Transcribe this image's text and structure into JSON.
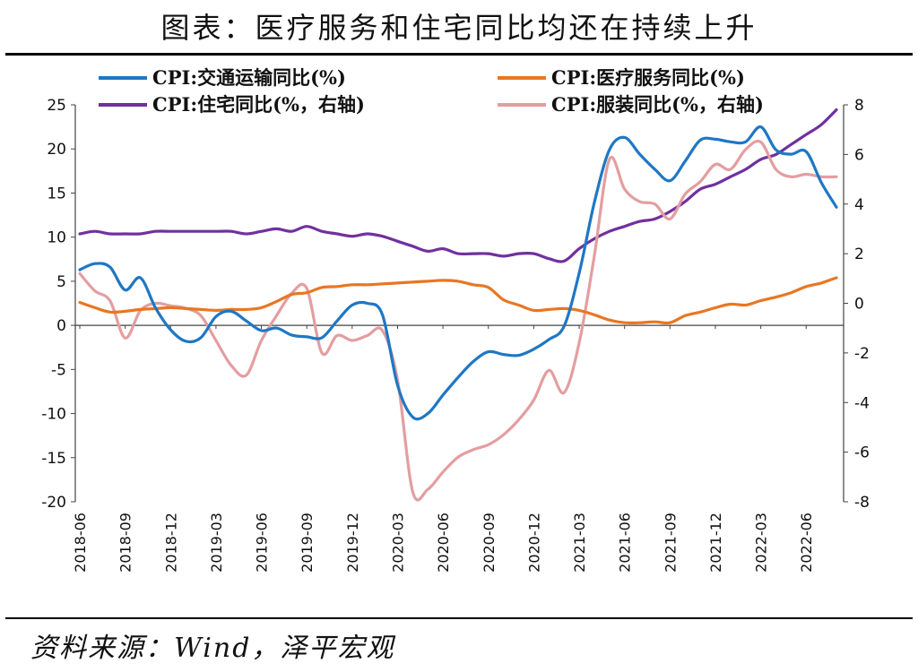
{
  "title": "图表：医疗服务和住宅同比均还在持续上升",
  "source": "资料来源：Wind，泽平宏观",
  "chart_data": {
    "type": "line",
    "left_axis": {
      "ylim": [
        -20,
        25
      ],
      "ticks": [
        25,
        20,
        15,
        10,
        5,
        0,
        -5,
        -10,
        -15,
        -20
      ]
    },
    "right_axis": {
      "ylim": [
        -8,
        8
      ],
      "ticks": [
        8,
        6,
        4,
        2,
        0,
        -2,
        -4,
        -6,
        -8
      ]
    },
    "x_tick_labels": [
      "2018-06",
      "2018-09",
      "2018-12",
      "2019-03",
      "2019-06",
      "2019-09",
      "2019-12",
      "2020-03",
      "2020-06",
      "2020-09",
      "2020-12",
      "2021-03",
      "2021-06",
      "2021-09",
      "2021-12",
      "2022-03",
      "2022-06"
    ],
    "x": [
      "2018-06",
      "2018-07",
      "2018-08",
      "2018-09",
      "2018-10",
      "2018-11",
      "2018-12",
      "2019-01",
      "2019-02",
      "2019-03",
      "2019-04",
      "2019-05",
      "2019-06",
      "2019-07",
      "2019-08",
      "2019-09",
      "2019-10",
      "2019-11",
      "2019-12",
      "2020-01",
      "2020-02",
      "2020-03",
      "2020-04",
      "2020-05",
      "2020-06",
      "2020-07",
      "2020-08",
      "2020-09",
      "2020-10",
      "2020-11",
      "2020-12",
      "2021-01",
      "2021-02",
      "2021-03",
      "2021-04",
      "2021-05",
      "2021-06",
      "2021-07",
      "2021-08",
      "2021-09",
      "2021-10",
      "2021-11",
      "2021-12",
      "2022-01",
      "2022-02",
      "2022-03",
      "2022-04",
      "2022-05",
      "2022-06",
      "2022-07",
      "2022-08"
    ],
    "legend_position": "top",
    "series": [
      {
        "name": "CPI:交通运输同比(%)",
        "axis": "left",
        "color": "#1f77c4",
        "values": [
          6.3,
          7.0,
          6.6,
          4.0,
          5.4,
          2.0,
          -0.5,
          -1.8,
          -1.4,
          1.0,
          1.6,
          0.5,
          -0.6,
          -0.3,
          -1.1,
          -1.3,
          -1.4,
          0.5,
          2.3,
          2.5,
          1.2,
          -6.8,
          -10.4,
          -10.0,
          -7.9,
          -5.9,
          -4.1,
          -3.0,
          -3.3,
          -3.4,
          -2.7,
          -1.6,
          -0.1,
          5.9,
          13.9,
          19.9,
          21.3,
          19.4,
          17.7,
          16.4,
          18.6,
          21.0,
          21.1,
          20.8,
          20.8,
          22.5,
          19.9,
          19.4,
          19.7,
          16.2,
          13.4
        ]
      },
      {
        "name": "CPI:医疗服务同比(%)",
        "axis": "left",
        "color": "#e87722",
        "values": [
          2.6,
          2.0,
          1.5,
          1.6,
          1.8,
          1.9,
          2.0,
          1.9,
          1.8,
          1.7,
          1.8,
          1.8,
          2.0,
          2.7,
          3.5,
          3.7,
          4.3,
          4.4,
          4.6,
          4.6,
          4.7,
          4.8,
          4.9,
          5.0,
          5.1,
          5.0,
          4.6,
          4.3,
          2.9,
          2.3,
          1.7,
          1.8,
          1.9,
          1.7,
          1.2,
          0.6,
          0.3,
          0.3,
          0.4,
          0.3,
          1.1,
          1.5,
          2.0,
          2.4,
          2.3,
          2.8,
          3.2,
          3.7,
          4.4,
          4.8,
          5.4
        ]
      },
      {
        "name": "CPI:住宅同比(%，右轴)",
        "axis": "right",
        "color": "#7030a0",
        "values": [
          2.8,
          2.9,
          2.8,
          2.8,
          2.8,
          2.9,
          2.9,
          2.9,
          2.9,
          2.9,
          2.9,
          2.8,
          2.9,
          3.0,
          2.9,
          3.1,
          2.9,
          2.8,
          2.7,
          2.8,
          2.7,
          2.5,
          2.3,
          2.1,
          2.2,
          2.0,
          2.0,
          2.0,
          1.9,
          2.0,
          2.0,
          1.8,
          1.7,
          2.2,
          2.6,
          2.9,
          3.1,
          3.3,
          3.4,
          3.7,
          4.1,
          4.6,
          4.8,
          5.1,
          5.4,
          5.8,
          6.0,
          6.4,
          6.8,
          7.2,
          7.8
        ]
      },
      {
        "name": "CPI:服装同比(%，右轴)",
        "axis": "right",
        "color": "#e39ea0",
        "values": [
          1.2,
          0.5,
          0.1,
          -1.4,
          -0.3,
          0.0,
          -0.1,
          -0.2,
          -0.5,
          -1.5,
          -2.5,
          -2.9,
          -1.5,
          -0.5,
          0.4,
          0.6,
          -2.0,
          -1.3,
          -1.5,
          -1.3,
          -1.1,
          -3.1,
          -7.6,
          -7.5,
          -6.8,
          -6.2,
          -5.9,
          -5.7,
          -5.3,
          -4.7,
          -3.9,
          -2.7,
          -3.6,
          -1.6,
          1.9,
          5.8,
          4.6,
          4.1,
          4.0,
          3.4,
          4.4,
          4.9,
          5.6,
          5.4,
          6.2,
          6.5,
          5.4,
          5.1,
          5.2,
          5.1,
          5.1
        ]
      }
    ]
  }
}
